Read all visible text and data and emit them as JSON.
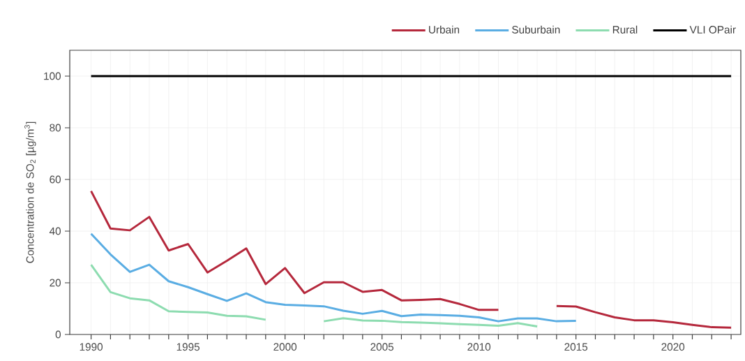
{
  "chart_data": {
    "type": "line",
    "ylabel": "Concentration de SO$_{2}$ [µg/m$^{3}$]",
    "xlim": [
      1988.9,
      2023.5
    ],
    "ylim": [
      0,
      110
    ],
    "xticks": [
      1990,
      {
        "value": 1991,
        "label": null
      },
      {
        "value": 1992,
        "label": null
      },
      {
        "value": 1993,
        "label": null
      },
      {
        "value": 1994,
        "label": null
      },
      1995,
      {
        "value": 1996,
        "label": null
      },
      {
        "value": 1997,
        "label": null
      },
      {
        "value": 1998,
        "label": null
      },
      {
        "value": 1999,
        "label": null
      },
      2000,
      {
        "value": 2001,
        "label": null
      },
      {
        "value": 2002,
        "label": null
      },
      {
        "value": 2003,
        "label": null
      },
      {
        "value": 2004,
        "label": null
      },
      2005,
      {
        "value": 2006,
        "label": null
      },
      {
        "value": 2007,
        "label": null
      },
      {
        "value": 2008,
        "label": null
      },
      {
        "value": 2009,
        "label": null
      },
      2010,
      {
        "value": 2011,
        "label": null
      },
      {
        "value": 2012,
        "label": null
      },
      {
        "value": 2013,
        "label": null
      },
      {
        "value": 2014,
        "label": null
      },
      2015,
      {
        "value": 2016,
        "label": null
      },
      {
        "value": 2017,
        "label": null
      },
      {
        "value": 2018,
        "label": null
      },
      {
        "value": 2019,
        "label": null
      },
      2020,
      {
        "value": 2021,
        "label": null
      },
      {
        "value": 2022,
        "label": null
      },
      {
        "value": 2023,
        "label": null
      }
    ],
    "yticks": [
      0,
      20,
      40,
      60,
      80,
      100
    ],
    "grid": true,
    "legend": "top right",
    "line_style": "solid",
    "series": [
      {
        "name": "Urbain",
        "color": "#b5283c",
        "x": [
          1990,
          1991,
          1992,
          1993,
          1994,
          1995,
          1996,
          1997,
          1998,
          1999,
          2000,
          2001,
          2002,
          2003,
          2004,
          2005,
          2006,
          2007,
          2008,
          2009,
          2010,
          2011,
          2012,
          2013,
          2014,
          2015,
          2016,
          2017,
          2018,
          2019,
          2020,
          2021,
          2022,
          2023
        ],
        "values": [
          55.5,
          41,
          40.3,
          45.5,
          32.5,
          35,
          24,
          28.5,
          33.3,
          19.5,
          25.7,
          16,
          20.2,
          20.2,
          16.5,
          17.2,
          13.2,
          13.4,
          13.7,
          11.8,
          9.5,
          9.5,
          null,
          null,
          11,
          10.8,
          8.6,
          6.6,
          5.5,
          5.5,
          4.7,
          3.7,
          2.8,
          2.6
        ]
      },
      {
        "name": "Suburbain",
        "color": "#5aade3",
        "x": [
          1990,
          1991,
          1992,
          1993,
          1994,
          1995,
          1996,
          1997,
          1998,
          1999,
          2000,
          2001,
          2002,
          2003,
          2004,
          2005,
          2006,
          2007,
          2008,
          2009,
          2010,
          2011,
          2012,
          2013,
          2014,
          2015
        ],
        "values": [
          39,
          31,
          24.2,
          27,
          20.6,
          18.3,
          15.6,
          13,
          15.9,
          12.5,
          11.5,
          11.2,
          10.9,
          9.2,
          8,
          9.1,
          7.1,
          7.7,
          7.5,
          7.2,
          6.6,
          5.1,
          6.2,
          6.2,
          5.1,
          5.3
        ]
      },
      {
        "name": "Rural",
        "color": "#8ddcb0",
        "x": [
          1990,
          1991,
          1992,
          1993,
          1994,
          1995,
          1996,
          1997,
          1998,
          1999,
          2000,
          2001,
          2002,
          2003,
          2004,
          2005,
          2006,
          2007,
          2008,
          2009,
          2010,
          2011,
          2012,
          2013
        ],
        "values": [
          27,
          16.4,
          14,
          13.2,
          9,
          8.7,
          8.5,
          7.2,
          7,
          5.7,
          null,
          null,
          5.1,
          6.3,
          5.4,
          5.3,
          4.8,
          4.6,
          4.3,
          4,
          3.7,
          3.4,
          4.4,
          3.1
        ]
      },
      {
        "name": "VLI OPair",
        "color": "#000000",
        "x": [
          1990,
          2023
        ],
        "values": [
          100,
          100
        ]
      }
    ]
  }
}
